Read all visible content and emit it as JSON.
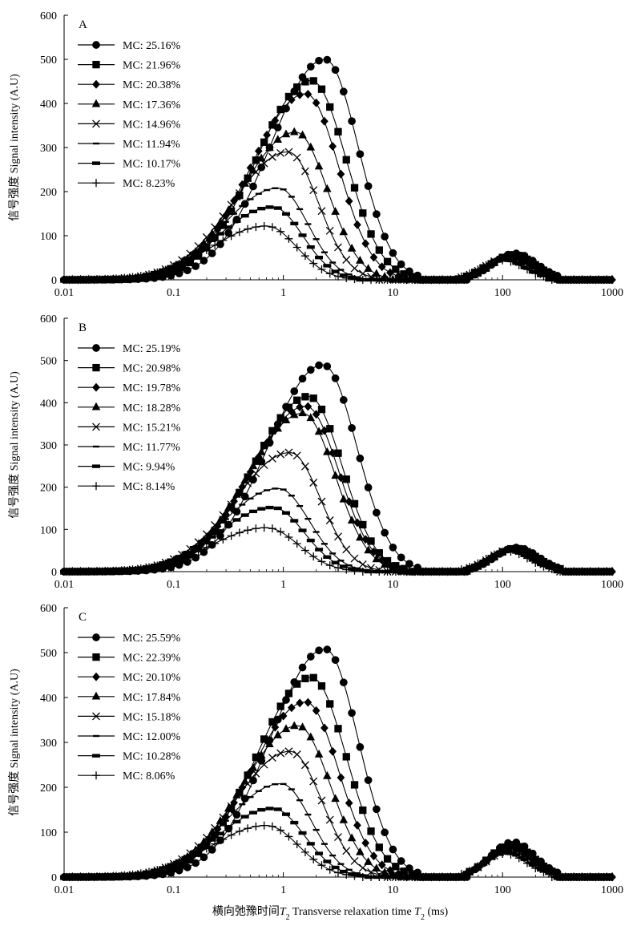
{
  "figure": {
    "ylabel": "信号强度 Signal intensity (A.U)",
    "xlabel_parts": [
      "横向弛豫时间",
      "T",
      "2",
      " Transverse relaxation time ",
      "T",
      "2",
      " (ms)"
    ]
  },
  "chart_data": [
    {
      "type": "line",
      "panel": "A",
      "x_scale": "log",
      "xlim": [
        0.01,
        1000
      ],
      "ylim": [
        0,
        600
      ],
      "xticks": [
        "0.01",
        "0.1",
        "1",
        "10",
        "100",
        "1000"
      ],
      "yticks": [
        "0",
        "100",
        "200",
        "300",
        "400",
        "500",
        "600"
      ],
      "ylabel": "信号强度 Signal intensity (A.U)",
      "legend_position": "top-left",
      "series": [
        {
          "name": "MC: 25.16%",
          "marker": "circle",
          "peak1": {
            "t2": 2.4,
            "height": 500,
            "end": 18
          },
          "peak2": {
            "t2": 130,
            "height": 60
          }
        },
        {
          "name": "MC: 21.96%",
          "marker": "square",
          "peak1": {
            "t2": 1.8,
            "height": 452,
            "end": 15
          },
          "peak2": {
            "t2": 125,
            "height": 57
          }
        },
        {
          "name": "MC: 20.38%",
          "marker": "diamond",
          "peak1": {
            "t2": 1.6,
            "height": 422,
            "end": 12
          },
          "peak2": {
            "t2": 120,
            "height": 55
          }
        },
        {
          "name": "MC: 17.36%",
          "marker": "triangle",
          "peak1": {
            "t2": 1.3,
            "height": 335,
            "end": 9
          },
          "peak2": {
            "t2": 115,
            "height": 52
          }
        },
        {
          "name": "MC: 14.96%",
          "marker": "cross",
          "peak1": {
            "t2": 1.1,
            "height": 290,
            "end": 7
          },
          "peak2": {
            "t2": 110,
            "height": 50
          }
        },
        {
          "name": "MC: 11.94%",
          "marker": "dash",
          "peak1": {
            "t2": 0.9,
            "height": 208,
            "end": 5.5
          },
          "peak2": {
            "t2": 105,
            "height": 48
          }
        },
        {
          "name": "MC: 10.17%",
          "marker": "bar",
          "peak1": {
            "t2": 0.8,
            "height": 165,
            "end": 5
          },
          "peak2": {
            "t2": 100,
            "height": 46
          }
        },
        {
          "name": "MC: 8.23%",
          "marker": "plus",
          "peak1": {
            "t2": 0.7,
            "height": 122,
            "end": 4.5
          },
          "peak2": {
            "t2": 100,
            "height": 44
          }
        }
      ]
    },
    {
      "type": "line",
      "panel": "B",
      "x_scale": "log",
      "xlim": [
        0.01,
        1000
      ],
      "ylim": [
        0,
        600
      ],
      "xticks": [
        "0.01",
        "0.1",
        "1",
        "10",
        "100",
        "1000"
      ],
      "yticks": [
        "0",
        "100",
        "200",
        "300",
        "400",
        "500",
        "600"
      ],
      "ylabel": "信号强度 Signal intensity (A.U)",
      "legend_position": "top-left",
      "series": [
        {
          "name": "MC: 25.19%",
          "marker": "circle",
          "peak1": {
            "t2": 2.3,
            "height": 490,
            "end": 18
          },
          "peak2": {
            "t2": 135,
            "height": 57
          }
        },
        {
          "name": "MC: 20.98%",
          "marker": "square",
          "peak1": {
            "t2": 1.7,
            "height": 415,
            "end": 13
          },
          "peak2": {
            "t2": 130,
            "height": 55
          }
        },
        {
          "name": "MC: 19.78%",
          "marker": "diamond",
          "peak1": {
            "t2": 1.6,
            "height": 392,
            "end": 12
          },
          "peak2": {
            "t2": 125,
            "height": 54
          }
        },
        {
          "name": "MC: 18.28%",
          "marker": "triangle",
          "peak1": {
            "t2": 1.5,
            "height": 375,
            "end": 11
          },
          "peak2": {
            "t2": 125,
            "height": 53
          }
        },
        {
          "name": "MC: 15.21%",
          "marker": "cross",
          "peak1": {
            "t2": 1.15,
            "height": 282,
            "end": 7.5
          },
          "peak2": {
            "t2": 120,
            "height": 52
          }
        },
        {
          "name": "MC: 11.77%",
          "marker": "dash",
          "peak1": {
            "t2": 0.9,
            "height": 197,
            "end": 6
          },
          "peak2": {
            "t2": 115,
            "height": 50
          }
        },
        {
          "name": "MC: 9.94%",
          "marker": "bar",
          "peak1": {
            "t2": 0.8,
            "height": 152,
            "end": 5.5
          },
          "peak2": {
            "t2": 115,
            "height": 49
          }
        },
        {
          "name": "MC: 8.14%",
          "marker": "plus",
          "peak1": {
            "t2": 0.7,
            "height": 104,
            "end": 5
          },
          "peak2": {
            "t2": 110,
            "height": 48
          }
        }
      ]
    },
    {
      "type": "line",
      "panel": "C",
      "x_scale": "log",
      "xlim": [
        0.01,
        1000
      ],
      "ylim": [
        0,
        600
      ],
      "xticks": [
        "0.01",
        "0.1",
        "1",
        "10",
        "100",
        "1000"
      ],
      "yticks": [
        "0",
        "100",
        "200",
        "300",
        "400",
        "500",
        "600"
      ],
      "ylabel": "信号强度 Signal intensity (A.U)",
      "legend_position": "top-left",
      "series": [
        {
          "name": "MC: 25.59%",
          "marker": "circle",
          "peak1": {
            "t2": 2.4,
            "height": 508,
            "end": 18
          },
          "peak2": {
            "t2": 125,
            "height": 78
          }
        },
        {
          "name": "MC: 22.39%",
          "marker": "square",
          "peak1": {
            "t2": 1.8,
            "height": 445,
            "end": 15
          },
          "peak2": {
            "t2": 120,
            "height": 72
          }
        },
        {
          "name": "MC: 20.10%",
          "marker": "diamond",
          "peak1": {
            "t2": 1.6,
            "height": 390,
            "end": 12
          },
          "peak2": {
            "t2": 120,
            "height": 68
          }
        },
        {
          "name": "MC: 17.84%",
          "marker": "triangle",
          "peak1": {
            "t2": 1.35,
            "height": 337,
            "end": 10
          },
          "peak2": {
            "t2": 115,
            "height": 64
          }
        },
        {
          "name": "MC: 15.18%",
          "marker": "cross",
          "peak1": {
            "t2": 1.15,
            "height": 280,
            "end": 8
          },
          "peak2": {
            "t2": 115,
            "height": 60
          }
        },
        {
          "name": "MC: 12.00%",
          "marker": "dash",
          "peak1": {
            "t2": 0.95,
            "height": 208,
            "end": 6
          },
          "peak2": {
            "t2": 110,
            "height": 56
          }
        },
        {
          "name": "MC: 10.28%",
          "marker": "bar",
          "peak1": {
            "t2": 0.8,
            "height": 153,
            "end": 5.5
          },
          "peak2": {
            "t2": 110,
            "height": 54
          }
        },
        {
          "name": "MC: 8.06%",
          "marker": "plus",
          "peak1": {
            "t2": 0.7,
            "height": 115,
            "end": 5
          },
          "peak2": {
            "t2": 105,
            "height": 52
          }
        }
      ]
    }
  ]
}
